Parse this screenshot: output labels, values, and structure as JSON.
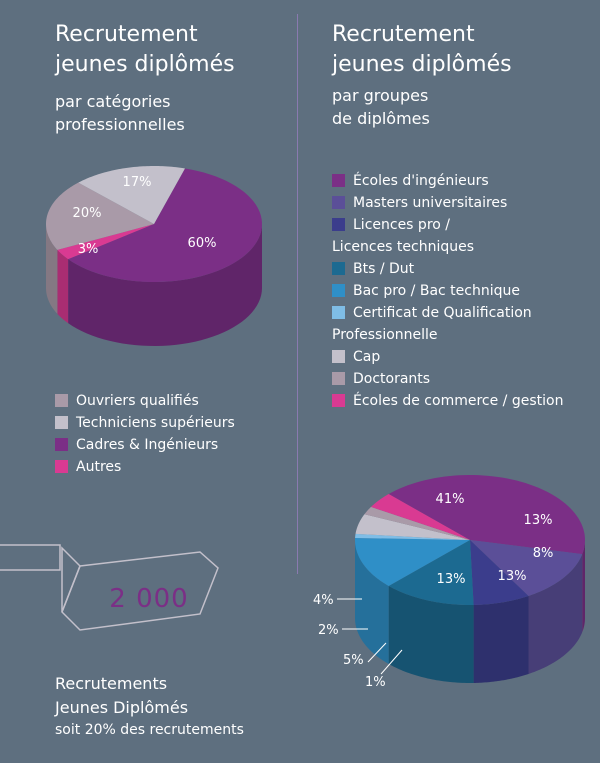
{
  "left": {
    "title": [
      "Recrutement",
      "jeunes diplômés"
    ],
    "subtitle": [
      "par catégories",
      "professionnelles"
    ]
  },
  "right": {
    "title": [
      "Recrutement",
      "jeunes diplômés"
    ],
    "subtitle": [
      "par groupes",
      "de diplômes"
    ]
  },
  "banner": {
    "number": "2 000"
  },
  "footer": {
    "line1": "Recrutements",
    "line2": "Jeunes Diplômés",
    "line3": "soit 20% des recrutements"
  },
  "chart_data": [
    {
      "type": "pie",
      "title": "Recrutement jeunes diplômés par catégories professionnelles",
      "slices": [
        {
          "label": "Cadres & Ingénieurs",
          "value": 60,
          "display": "60%",
          "color": "#7b2f86"
        },
        {
          "label": "Autres",
          "value": 3,
          "display": "3%",
          "color": "#d93a92"
        },
        {
          "label": "Ouvriers qualifiés",
          "value": 20,
          "display": "20%",
          "color": "#a99aa8"
        },
        {
          "label": "Techniciens supérieurs",
          "value": 17,
          "display": "17%",
          "color": "#c3c0cb"
        }
      ],
      "legend": [
        {
          "label": "Ouvriers qualifiés",
          "color": "#a99aa8"
        },
        {
          "label": "Techniciens supérieurs",
          "color": "#c3c0cb"
        },
        {
          "label": "Cadres & Ingénieurs",
          "color": "#7b2f86"
        },
        {
          "label": "Autres",
          "color": "#d93a92"
        }
      ]
    },
    {
      "type": "pie",
      "title": "Recrutement jeunes diplômés par groupes de diplômes",
      "slices": [
        {
          "label": "Écoles d'ingénieurs",
          "value": 41,
          "display": "41%",
          "color": "#7b2f86"
        },
        {
          "label": "Masters universitaires",
          "value": 13,
          "display": "13%",
          "color": "#5b4f98"
        },
        {
          "label": "Licences pro / Licences techniques",
          "value": 8,
          "display": "8%",
          "color": "#3b3d8c"
        },
        {
          "label": "Bts / Dut",
          "value": 13,
          "display": "13%",
          "color": "#1c6a91"
        },
        {
          "label": "Bac pro / Bac technique",
          "value": 13,
          "display": "13%",
          "color": "#2f8fc7"
        },
        {
          "label": "Certificat de Qualification Professionnelle",
          "value": 1,
          "display": "1%",
          "color": "#7fbde6"
        },
        {
          "label": "Cap",
          "value": 5,
          "display": "5%",
          "color": "#c3c0cb"
        },
        {
          "label": "Doctorants",
          "value": 2,
          "display": "2%",
          "color": "#a99aa8"
        },
        {
          "label": "Écoles de commerce / gestion",
          "value": 4,
          "display": "4%",
          "color": "#d93a92"
        }
      ],
      "legend": [
        {
          "label": "Écoles d'ingénieurs",
          "color": "#7b2f86"
        },
        {
          "label": "Masters universitaires",
          "color": "#5b4f98"
        },
        {
          "label": "Licences pro /",
          "label2": "Licences techniques",
          "color": "#3b3d8c"
        },
        {
          "label": "Bts / Dut",
          "color": "#1c6a91"
        },
        {
          "label": "Bac pro / Bac technique",
          "color": "#2f8fc7"
        },
        {
          "label": "Certificat de Qualification",
          "label2": "Professionnelle",
          "color": "#7fbde6"
        },
        {
          "label": "Cap",
          "color": "#c3c0cb"
        },
        {
          "label": "Doctorants",
          "color": "#a99aa8"
        },
        {
          "label": "Écoles de commerce / gestion",
          "color": "#d93a92"
        }
      ]
    }
  ]
}
